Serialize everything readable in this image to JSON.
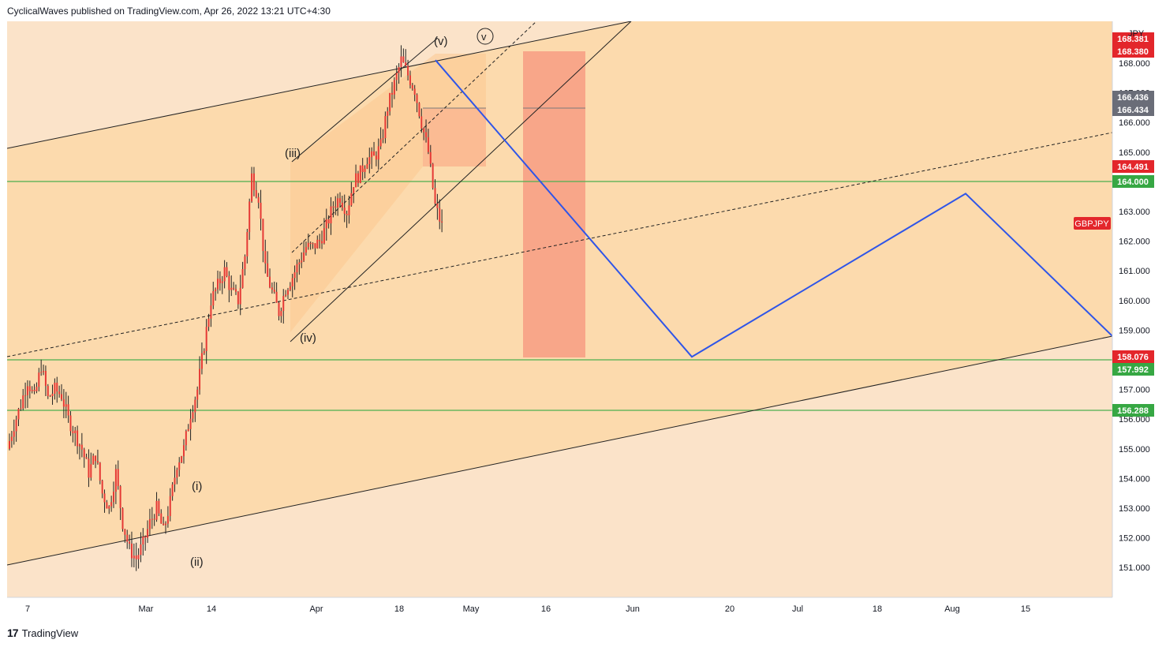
{
  "header": {
    "text": "CyclicalWaves published on TradingView.com, Apr 26, 2022 13:21 UTC+4:30"
  },
  "footer": {
    "brand": "TradingView",
    "logo_icon": "tradingview-logo-icon"
  },
  "symbol_label": "GBPJPY",
  "currency_label": "JPY",
  "colors": {
    "background_band": "#fbe3c9",
    "channel_fill": "#fcd8a8",
    "candle": "#e53935",
    "wick": "#222222",
    "projection": "#2f55e8",
    "support_line": "#4caf50",
    "red_box": "#f7a085",
    "price_tag_red": "#e3262b",
    "price_tag_green": "#36a743",
    "price_tag_gray": "#6a6d78"
  },
  "chart_data": {
    "type": "candlestick",
    "symbol": "GBPJPY",
    "ylim": [
      150.2,
      169.0
    ],
    "y_ticks": [
      151,
      152,
      153,
      154,
      155,
      156,
      157,
      158,
      159,
      160,
      161,
      162,
      163,
      164,
      165,
      166,
      167,
      168
    ],
    "y_tick_labels": [
      "151.000",
      "152.000",
      "153.000",
      "154.000",
      "155.000",
      "156.000",
      "157.000",
      "158.000",
      "159.000",
      "160.000",
      "161.000",
      "162.000",
      "163.000",
      "164.000",
      "165.000",
      "166.000",
      "167.000",
      "168.000"
    ],
    "x_ticks": [
      "7",
      "Mar",
      "14",
      "Apr",
      "18",
      "May",
      "16",
      "Jun",
      "20",
      "Jul",
      "18",
      "Aug",
      "15"
    ],
    "wave_labels": [
      "(i)",
      "(ii)",
      "(iii)",
      "(iv)",
      "(v)",
      "v"
    ],
    "price_tags": [
      {
        "value": "168.381",
        "color": "red"
      },
      {
        "value": "168.380",
        "color": "red"
      },
      {
        "value": "166.436",
        "color": "gray"
      },
      {
        "value": "166.434",
        "color": "gray"
      },
      {
        "value": "164.491",
        "color": "red"
      },
      {
        "value": "164.000",
        "color": "green"
      },
      {
        "value": "158.076",
        "color": "red"
      },
      {
        "value": "157.992",
        "color": "green"
      },
      {
        "value": "156.288",
        "color": "green"
      }
    ],
    "horizontal_levels": [
      164.0,
      157.992,
      156.288
    ],
    "candle_path_approx": [
      155.0,
      155.8,
      156.5,
      157.3,
      156.7,
      157.8,
      156.7,
      157.0,
      156.8,
      156.0,
      155.5,
      155.0,
      154.2,
      154.8,
      153.5,
      153.0,
      154.2,
      152.5,
      151.6,
      151.3,
      151.8,
      152.5,
      153.0,
      152.2,
      153.2,
      154.5,
      155.0,
      156.2,
      157.0,
      158.5,
      160.0,
      160.5,
      161.0,
      160.3,
      160.0,
      161.5,
      164.2,
      163.5,
      161.0,
      160.3,
      159.6,
      160.4,
      160.8,
      161.3,
      161.8,
      161.8,
      162.0,
      162.5,
      163.2,
      163.5,
      163.0,
      164.0,
      164.3,
      164.8,
      164.8,
      165.2,
      166.5,
      167.3,
      168.1,
      167.6,
      167.1,
      166.0,
      165.0,
      163.2,
      162.5
    ],
    "projection_path": [
      168.1,
      158.1,
      163.6,
      158.8
    ],
    "wave_v_target_box": [
      166.43,
      164.49
    ],
    "red_target_box": [
      168.38,
      158.08
    ]
  }
}
